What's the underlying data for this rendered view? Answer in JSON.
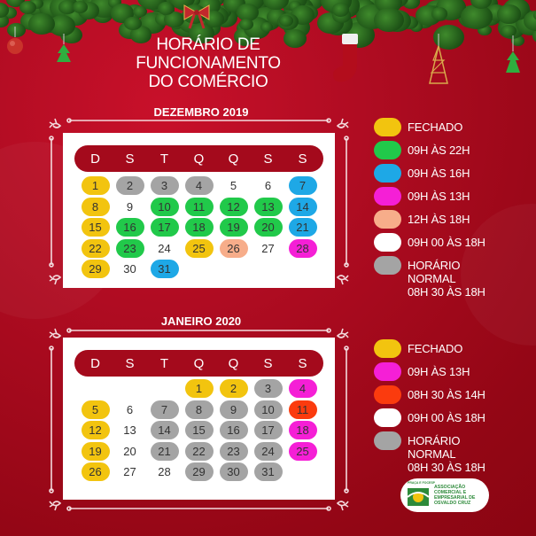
{
  "header": {
    "title_lines": [
      "HORÁRIO DE",
      "FUNCIONAMENTO",
      "DO COMÉRCIO"
    ]
  },
  "colors": {
    "background": "#a80a1d",
    "dow_bar": "#a40a1c",
    "fechado": "#f2c40f",
    "green": "#21c94a",
    "blue": "#1ea8e6",
    "magenta": "#f51fd6",
    "peach": "#f7ad8a",
    "white": "#ffffff",
    "gray": "#a4a4a4",
    "orange_red": "#fb3b0e"
  },
  "calendars": [
    {
      "title": "DEZEMBRO 2019",
      "weekdays": [
        "D",
        "S",
        "T",
        "Q",
        "Q",
        "S",
        "S"
      ],
      "leading_blanks": 0,
      "days": [
        {
          "n": "1",
          "c": "fechado"
        },
        {
          "n": "2",
          "c": "gray"
        },
        {
          "n": "3",
          "c": "gray"
        },
        {
          "n": "4",
          "c": "gray"
        },
        {
          "n": "5",
          "c": "white"
        },
        {
          "n": "6",
          "c": "white"
        },
        {
          "n": "7",
          "c": "blue"
        },
        {
          "n": "8",
          "c": "fechado"
        },
        {
          "n": "9",
          "c": "white"
        },
        {
          "n": "10",
          "c": "green"
        },
        {
          "n": "11",
          "c": "green"
        },
        {
          "n": "12",
          "c": "green"
        },
        {
          "n": "13",
          "c": "green"
        },
        {
          "n": "14",
          "c": "blue"
        },
        {
          "n": "15",
          "c": "fechado"
        },
        {
          "n": "16",
          "c": "green"
        },
        {
          "n": "17",
          "c": "green"
        },
        {
          "n": "18",
          "c": "green"
        },
        {
          "n": "19",
          "c": "green"
        },
        {
          "n": "20",
          "c": "green"
        },
        {
          "n": "21",
          "c": "blue"
        },
        {
          "n": "22",
          "c": "fechado"
        },
        {
          "n": "23",
          "c": "green"
        },
        {
          "n": "24",
          "c": "white"
        },
        {
          "n": "25",
          "c": "fechado"
        },
        {
          "n": "26",
          "c": "peach"
        },
        {
          "n": "27",
          "c": "white"
        },
        {
          "n": "28",
          "c": "magenta"
        },
        {
          "n": "29",
          "c": "fechado"
        },
        {
          "n": "30",
          "c": "white"
        },
        {
          "n": "31",
          "c": "blue"
        }
      ]
    },
    {
      "title": "JANEIRO 2020",
      "weekdays": [
        "D",
        "S",
        "T",
        "Q",
        "Q",
        "S",
        "S"
      ],
      "leading_blanks": 3,
      "days": [
        {
          "n": "1",
          "c": "fechado"
        },
        {
          "n": "2",
          "c": "fechado"
        },
        {
          "n": "3",
          "c": "gray"
        },
        {
          "n": "4",
          "c": "magenta"
        },
        {
          "n": "5",
          "c": "fechado"
        },
        {
          "n": "6",
          "c": "white"
        },
        {
          "n": "7",
          "c": "gray"
        },
        {
          "n": "8",
          "c": "gray"
        },
        {
          "n": "9",
          "c": "gray"
        },
        {
          "n": "10",
          "c": "gray"
        },
        {
          "n": "11",
          "c": "orange_red"
        },
        {
          "n": "12",
          "c": "fechado"
        },
        {
          "n": "13",
          "c": "white"
        },
        {
          "n": "14",
          "c": "gray"
        },
        {
          "n": "15",
          "c": "gray"
        },
        {
          "n": "16",
          "c": "gray"
        },
        {
          "n": "17",
          "c": "gray"
        },
        {
          "n": "18",
          "c": "magenta"
        },
        {
          "n": "19",
          "c": "fechado"
        },
        {
          "n": "20",
          "c": "white"
        },
        {
          "n": "21",
          "c": "gray"
        },
        {
          "n": "22",
          "c": "gray"
        },
        {
          "n": "23",
          "c": "gray"
        },
        {
          "n": "24",
          "c": "gray"
        },
        {
          "n": "25",
          "c": "magenta"
        },
        {
          "n": "26",
          "c": "fechado"
        },
        {
          "n": "27",
          "c": "white"
        },
        {
          "n": "28",
          "c": "white"
        },
        {
          "n": "29",
          "c": "gray"
        },
        {
          "n": "30",
          "c": "gray"
        },
        {
          "n": "31",
          "c": "gray"
        }
      ]
    }
  ],
  "legends": [
    {
      "items": [
        {
          "c": "fechado",
          "label": "FECHADO"
        },
        {
          "c": "green",
          "label": "09H ÀS 22H"
        },
        {
          "c": "blue",
          "label": "09H ÀS 16H"
        },
        {
          "c": "magenta",
          "label": "09H ÀS 13H"
        },
        {
          "c": "peach",
          "label": "12H ÀS 18H"
        },
        {
          "c": "white",
          "label": "09H 00 ÀS 18H"
        },
        {
          "c": "gray",
          "label": "HORÁRIO\nNORMAL\n08H 30 ÀS 18H"
        }
      ]
    },
    {
      "items": [
        {
          "c": "fechado",
          "label": "FECHADO"
        },
        {
          "c": "magenta",
          "label": "09H ÀS 13H"
        },
        {
          "c": "orange_red",
          "label": "08H 30 ÀS 14H"
        },
        {
          "c": "white",
          "label": "09H 00 ÀS 18H"
        },
        {
          "c": "gray",
          "label": "HORÁRIO\nNORMAL\n08H 30 ÀS 18H"
        }
      ]
    }
  ],
  "logo": {
    "top_text": "PRAÇA E FOCESP",
    "lines": [
      "ASSOCIAÇÃO",
      "COMERCIAL E",
      "EMPRESARIAL DE",
      "OSVALDO CRUZ"
    ]
  }
}
